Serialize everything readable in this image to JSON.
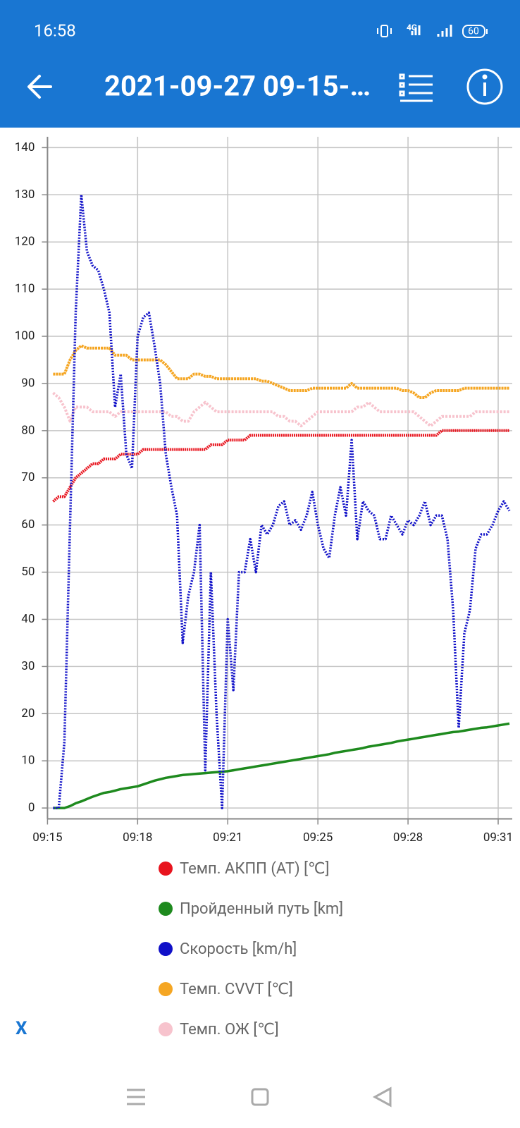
{
  "status_bar": {
    "time": "16:58",
    "network": "4G",
    "battery": "60"
  },
  "app_bar": {
    "title": "2021-09-27 09-15-…"
  },
  "chart_data": {
    "type": "line",
    "x": [
      555.2,
      555.4,
      555.6,
      555.8,
      556,
      556.2,
      556.4,
      556.6,
      556.8,
      557,
      557.2,
      557.4,
      557.6,
      557.8,
      558,
      558.2,
      558.4,
      558.6,
      558.8,
      559,
      559.2,
      559.4,
      559.6,
      559.8,
      560,
      560.2,
      560.4,
      560.6,
      560.8,
      561,
      561.2,
      561.4,
      561.6,
      561.8,
      562,
      562.2,
      562.4,
      562.6,
      562.8,
      563,
      563.2,
      563.4,
      563.6,
      563.8,
      564,
      564.2,
      564.4,
      564.6,
      564.8,
      565,
      565.2,
      565.4,
      565.6,
      565.8,
      566,
      566.2,
      566.4,
      566.6,
      566.8,
      567,
      567.2,
      567.4,
      567.6,
      567.8,
      568,
      568.2,
      568.4,
      568.6,
      568.8,
      569,
      569.2,
      569.4,
      569.6,
      569.8,
      570,
      570.2,
      570.4,
      570.6,
      570.8,
      571,
      571.2,
      571.4
    ],
    "xlim": [
      555,
      571.5
    ],
    "xticks": [
      {
        "value": 555,
        "label": "09:15"
      },
      {
        "value": 558.2,
        "label": "09:18"
      },
      {
        "value": 561.4,
        "label": "09:21"
      },
      {
        "value": 564.6,
        "label": "09:25"
      },
      {
        "value": 567.8,
        "label": "09:28"
      },
      {
        "value": 571,
        "label": "09:31"
      }
    ],
    "ylim": [
      -2.3,
      142.3
    ],
    "yticks": [
      0,
      10,
      20,
      30,
      40,
      50,
      60,
      70,
      80,
      90,
      100,
      110,
      120,
      130,
      140
    ],
    "grid": true,
    "series": [
      {
        "name": "Темп. АКПП (AT) [℃]",
        "color": "#e8141e",
        "values": [
          65,
          66,
          66,
          68,
          70,
          71,
          72,
          73,
          73,
          74,
          74,
          74,
          75,
          75,
          75,
          75,
          76,
          76,
          76,
          76,
          76,
          76,
          76,
          76,
          76,
          76,
          76,
          76,
          77,
          77,
          77,
          78,
          78,
          78,
          78,
          79,
          79,
          79,
          79,
          79,
          79,
          79,
          79,
          79,
          79,
          79,
          79,
          79,
          79,
          79,
          79,
          79,
          79,
          79,
          79,
          79,
          79,
          79,
          79,
          79,
          79,
          79,
          79,
          79,
          79,
          79,
          79,
          79,
          79,
          80,
          80,
          80,
          80,
          80,
          80,
          80,
          80,
          80,
          80,
          80,
          80,
          80
        ]
      },
      {
        "name": "Пройденный путь [km]",
        "color": "#1e8a1e",
        "values": [
          0,
          0,
          0,
          0.4,
          1,
          1.4,
          1.9,
          2.4,
          2.8,
          3.2,
          3.4,
          3.7,
          4,
          4.2,
          4.4,
          4.6,
          5,
          5.4,
          5.8,
          6.1,
          6.4,
          6.6,
          6.8,
          7,
          7.1,
          7.2,
          7.3,
          7.4,
          7.5,
          7.6,
          7.7,
          7.8,
          8,
          8.2,
          8.4,
          8.6,
          8.8,
          9,
          9.2,
          9.4,
          9.6,
          9.8,
          10,
          10.2,
          10.4,
          10.6,
          10.8,
          11,
          11.2,
          11.4,
          11.7,
          11.9,
          12.1,
          12.3,
          12.5,
          12.7,
          13,
          13.2,
          13.4,
          13.6,
          13.8,
          14.1,
          14.3,
          14.5,
          14.7,
          14.9,
          15.1,
          15.3,
          15.5,
          15.7,
          15.9,
          16.1,
          16.2,
          16.4,
          16.6,
          16.8,
          17,
          17.1,
          17.3,
          17.5,
          17.7,
          17.9
        ]
      },
      {
        "name": "Скорость [km/h]",
        "color": "#1010c8",
        "values": [
          0,
          0,
          14,
          60,
          105,
          130,
          118,
          115,
          114,
          110,
          105,
          85,
          92,
          75,
          72,
          100,
          104,
          105,
          98,
          90,
          75,
          68,
          62,
          35,
          45,
          50,
          60,
          8,
          50,
          20,
          0,
          40,
          25,
          50,
          50,
          57,
          50,
          60,
          58,
          60,
          64,
          65,
          60,
          61,
          59,
          62,
          67,
          60,
          55,
          53,
          62,
          68,
          62,
          78,
          57,
          65,
          63,
          62,
          57,
          57,
          62,
          60,
          58,
          61,
          60,
          62,
          65,
          60,
          62,
          62,
          57,
          42,
          17,
          37,
          42,
          55,
          58,
          58,
          60,
          63,
          65,
          63
        ]
      },
      {
        "name": "Темп. CVVT [℃]",
        "color": "#f5a623",
        "values": [
          92,
          92,
          92,
          95,
          97,
          98,
          97.5,
          97.5,
          97.5,
          97.5,
          97.5,
          96,
          96,
          96,
          95,
          95,
          95,
          95,
          95,
          95,
          94,
          92.5,
          91,
          91,
          91,
          92,
          92,
          91.5,
          91.5,
          91,
          91,
          91,
          91,
          91,
          91,
          91,
          91,
          90.5,
          90.5,
          90,
          89.5,
          89,
          88.5,
          88.5,
          88.5,
          88.5,
          89,
          89,
          89,
          89,
          89,
          89,
          89,
          90,
          89,
          89,
          89,
          89,
          89,
          89,
          89,
          89,
          88.5,
          88.5,
          88,
          87,
          87,
          88,
          88.5,
          88.5,
          88.5,
          88.5,
          88.5,
          89,
          89,
          89,
          89,
          89,
          89,
          89,
          89,
          89
        ]
      },
      {
        "name": "Темп. ОЖ [℃]",
        "color": "#f7c3cd",
        "values": [
          88,
          87,
          85,
          82,
          85,
          85,
          85,
          84,
          84,
          84,
          84,
          83,
          84,
          84,
          84,
          84,
          84,
          84,
          84,
          84,
          84,
          83,
          83,
          82,
          82,
          84,
          85,
          86,
          85,
          84,
          84,
          84,
          84,
          84,
          84,
          84,
          84,
          84,
          84,
          84,
          83,
          83,
          82,
          82,
          81,
          82,
          83,
          84,
          84,
          84,
          84,
          84,
          84,
          84,
          85,
          85,
          86,
          85,
          84,
          84,
          84,
          84,
          84,
          84,
          84,
          83,
          82,
          81,
          82,
          83,
          83,
          83,
          83,
          83,
          83,
          84,
          84,
          84,
          84,
          84,
          84,
          84
        ]
      }
    ]
  },
  "close_button": "X"
}
